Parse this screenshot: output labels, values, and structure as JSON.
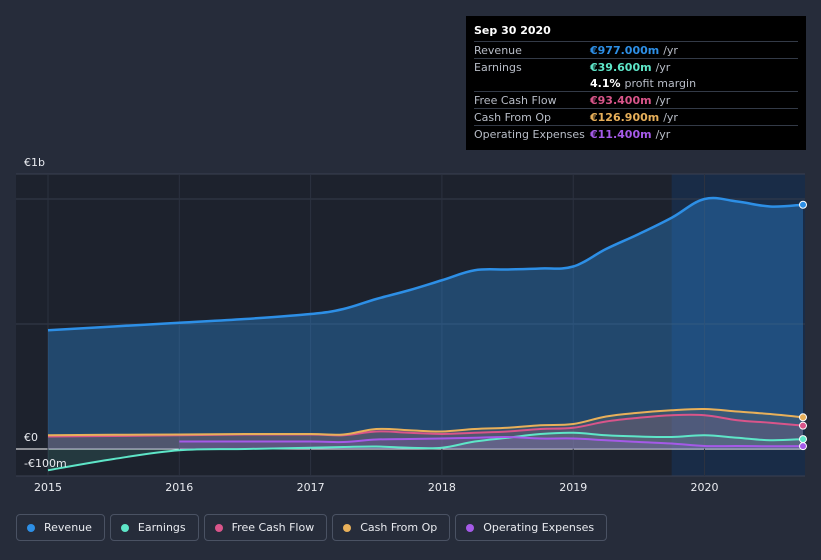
{
  "tooltip": {
    "date": "Sep 30 2020",
    "rows": [
      {
        "label": "Revenue",
        "value": "€977.000m",
        "unit": "/yr",
        "color": "#2d8fe6"
      },
      {
        "label": "Earnings",
        "value": "€39.600m",
        "unit": "/yr",
        "color": "#5ee6c8"
      },
      {
        "label": "",
        "value": "4.1%",
        "unit": "profit margin",
        "color": "#ffffff"
      },
      {
        "label": "Free Cash Flow",
        "value": "€93.400m",
        "unit": "/yr",
        "color": "#d9558a"
      },
      {
        "label": "Cash From Op",
        "value": "€126.900m",
        "unit": "/yr",
        "color": "#e8b05a"
      },
      {
        "label": "Operating Expenses",
        "value": "€11.400m",
        "unit": "/yr",
        "color": "#a55ae8"
      }
    ]
  },
  "axis": {
    "top_label": "€1b",
    "zero_label": "€0",
    "neg_label": "-€100m"
  },
  "legend": [
    {
      "label": "Revenue",
      "color": "#2d8fe6"
    },
    {
      "label": "Earnings",
      "color": "#5ee6c8"
    },
    {
      "label": "Free Cash Flow",
      "color": "#d9558a"
    },
    {
      "label": "Cash From Op",
      "color": "#e8b05a"
    },
    {
      "label": "Operating Expenses",
      "color": "#a55ae8"
    }
  ],
  "chart_data": {
    "type": "area",
    "title": "",
    "xlabel": "",
    "ylabel": "",
    "x_ticks": [
      "2015",
      "2016",
      "2017",
      "2018",
      "2019",
      "2020"
    ],
    "x_range": [
      2015.0,
      2020.75
    ],
    "ylim": [
      -100,
      1000
    ],
    "highlight_from": 2019.75,
    "series": [
      {
        "name": "Revenue",
        "color": "#2d8fe6",
        "x": [
          2015.0,
          2015.5,
          2016.0,
          2016.5,
          2017.0,
          2017.25,
          2017.5,
          2017.75,
          2018.0,
          2018.25,
          2018.5,
          2018.75,
          2019.0,
          2019.25,
          2019.5,
          2019.75,
          2020.0,
          2020.25,
          2020.5,
          2020.75
        ],
        "y": [
          475,
          490,
          505,
          520,
          540,
          560,
          600,
          635,
          675,
          715,
          718,
          722,
          730,
          800,
          860,
          925,
          1000,
          990,
          970,
          977
        ]
      },
      {
        "name": "Earnings",
        "color": "#5ee6c8",
        "x": [
          2015.0,
          2015.5,
          2016.0,
          2016.5,
          2017.0,
          2017.25,
          2017.5,
          2017.75,
          2018.0,
          2018.25,
          2018.5,
          2018.75,
          2019.0,
          2019.25,
          2019.5,
          2019.75,
          2020.0,
          2020.25,
          2020.5,
          2020.75
        ],
        "y": [
          -85,
          -40,
          -5,
          0,
          5,
          8,
          10,
          5,
          5,
          30,
          45,
          60,
          65,
          55,
          50,
          48,
          55,
          45,
          35,
          39.6
        ]
      },
      {
        "name": "Free Cash Flow",
        "color": "#d9558a",
        "x": [
          2015.0,
          2015.5,
          2016.0,
          2016.5,
          2017.0,
          2017.25,
          2017.5,
          2017.75,
          2018.0,
          2018.25,
          2018.5,
          2018.75,
          2019.0,
          2019.25,
          2019.5,
          2019.75,
          2020.0,
          2020.25,
          2020.5,
          2020.75
        ],
        "y": [
          50,
          52,
          55,
          58,
          58,
          55,
          70,
          65,
          60,
          65,
          70,
          80,
          85,
          110,
          125,
          135,
          135,
          115,
          105,
          93.4
        ]
      },
      {
        "name": "Cash From Op",
        "color": "#e8b05a",
        "x": [
          2015.0,
          2015.5,
          2016.0,
          2016.5,
          2017.0,
          2017.25,
          2017.5,
          2017.75,
          2018.0,
          2018.25,
          2018.5,
          2018.75,
          2019.0,
          2019.25,
          2019.5,
          2019.75,
          2020.0,
          2020.25,
          2020.5,
          2020.75
        ],
        "y": [
          55,
          57,
          58,
          60,
          60,
          58,
          80,
          75,
          70,
          80,
          85,
          95,
          100,
          130,
          145,
          155,
          160,
          150,
          140,
          126.9
        ]
      },
      {
        "name": "Operating Expenses",
        "color": "#a55ae8",
        "x": [
          2016.0,
          2016.5,
          2017.0,
          2017.25,
          2017.5,
          2017.75,
          2018.0,
          2018.25,
          2018.5,
          2018.75,
          2019.0,
          2019.25,
          2019.5,
          2019.75,
          2020.0,
          2020.25,
          2020.5,
          2020.75
        ],
        "y": [
          30,
          30,
          30,
          28,
          38,
          40,
          42,
          45,
          48,
          42,
          42,
          35,
          28,
          22,
          12,
          12,
          11,
          11.4
        ]
      }
    ]
  }
}
